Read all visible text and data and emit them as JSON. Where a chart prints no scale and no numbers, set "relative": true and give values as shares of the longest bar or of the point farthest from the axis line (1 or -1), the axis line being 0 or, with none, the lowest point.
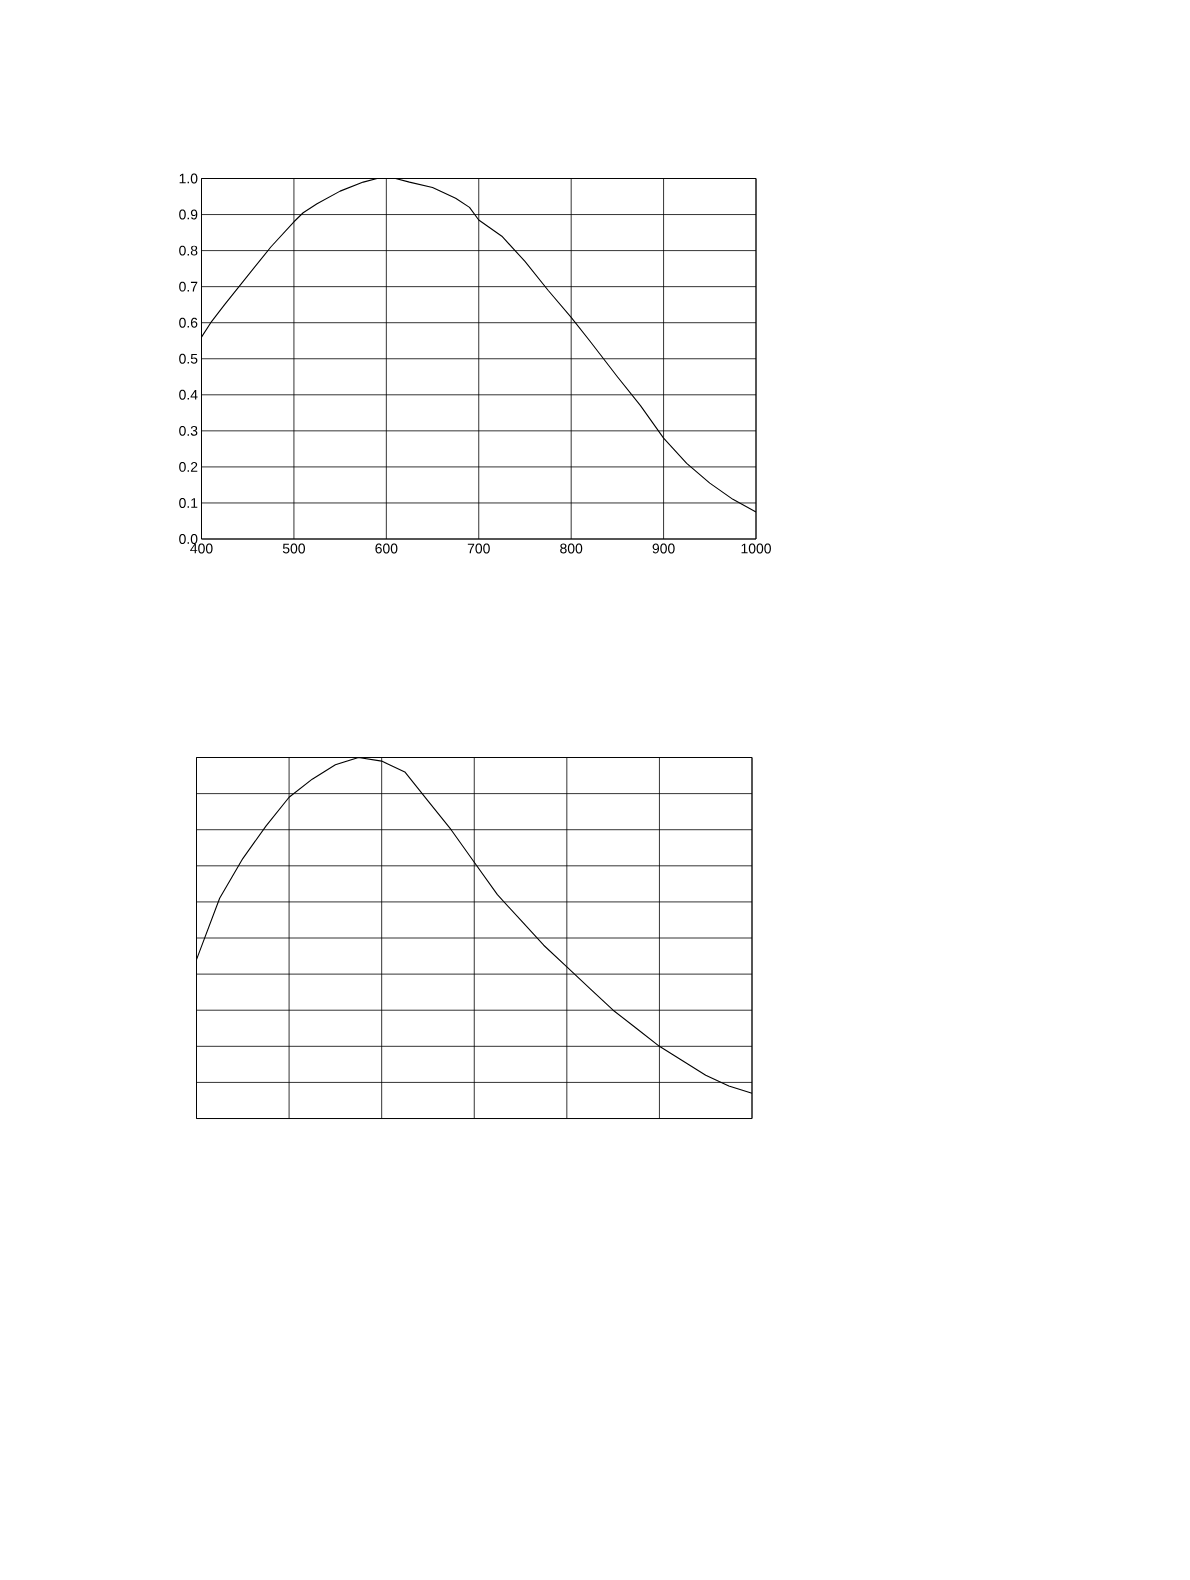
{
  "chart_data": [
    {
      "type": "line",
      "x": [
        400,
        410,
        425,
        450,
        475,
        500,
        510,
        525,
        550,
        575,
        590,
        600,
        610,
        625,
        650,
        675,
        690,
        700,
        725,
        750,
        775,
        800,
        820,
        850,
        875,
        900,
        925,
        950,
        975,
        1000
      ],
      "values": [
        0.56,
        0.6,
        0.65,
        0.73,
        0.81,
        0.88,
        0.905,
        0.93,
        0.965,
        0.99,
        1.0,
        1.0,
        1.0,
        0.99,
        0.975,
        0.945,
        0.92,
        0.885,
        0.84,
        0.77,
        0.69,
        0.615,
        0.55,
        0.45,
        0.37,
        0.28,
        0.21,
        0.155,
        0.11,
        0.075
      ],
      "color": "#000000",
      "xlim": [
        400,
        1000
      ],
      "ylim": [
        0,
        1
      ],
      "xticks": [
        400,
        500,
        600,
        700,
        800,
        900,
        1000
      ],
      "yticks": [
        {
          "value": 0,
          "label": "0.0"
        },
        {
          "value": 0.1,
          "label": "0.1"
        },
        {
          "value": 0.2,
          "label": "0.2"
        },
        {
          "value": 0.3,
          "label": "0.3"
        },
        {
          "value": 0.4,
          "label": "0.4"
        },
        {
          "value": 0.5,
          "label": "0.5"
        },
        {
          "value": 0.6,
          "label": "0.6"
        },
        {
          "value": 0.7,
          "label": "0.7"
        },
        {
          "value": 0.8,
          "label": "0.8"
        },
        {
          "value": 0.9,
          "label": "0.9"
        },
        {
          "value": 1,
          "label": "1.0"
        }
      ],
      "grid": true,
      "marker": "none",
      "line_style": "solid"
    },
    {
      "type": "line",
      "relative": true,
      "categories": [
        null,
        null,
        null,
        null,
        null,
        null,
        null,
        null,
        null,
        null,
        null,
        null,
        null,
        null,
        null,
        null,
        null,
        null,
        null,
        null,
        null,
        null,
        null,
        null,
        null
      ],
      "values": [
        0.44,
        0.61,
        0.72,
        0.81,
        0.89,
        0.94,
        0.98,
        1.0,
        0.99,
        0.96,
        0.88,
        0.8,
        0.71,
        0.62,
        0.55,
        0.48,
        0.42,
        0.36,
        0.3,
        0.25,
        0.2,
        0.16,
        0.12,
        0.09,
        0.07
      ],
      "color": "#000000",
      "grid": true,
      "marker": "none",
      "line_style": "solid"
    }
  ]
}
